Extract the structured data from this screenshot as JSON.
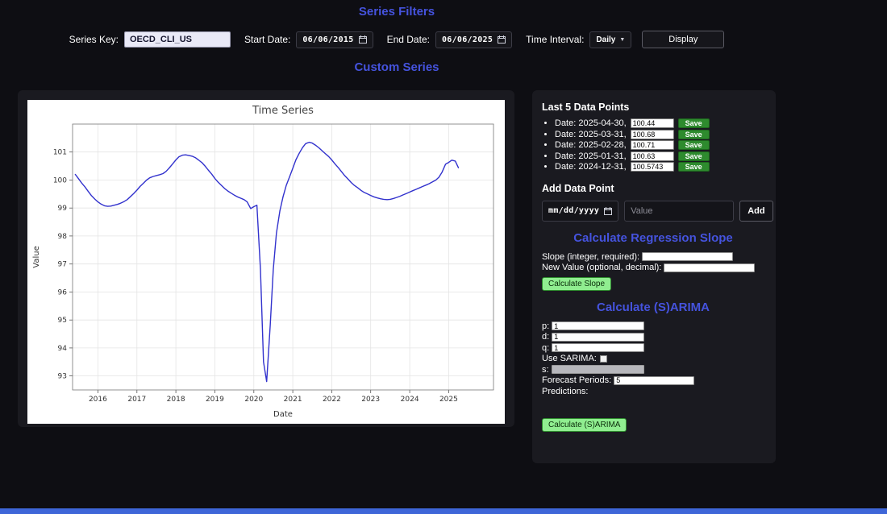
{
  "titles": {
    "series_filters": "Series Filters",
    "custom_series": "Custom Series"
  },
  "filters": {
    "series_key_label": "Series Key:",
    "series_key_value": "OECD_CLI_US",
    "start_date_label": "Start Date:",
    "start_date_value": "06/06/2015",
    "end_date_label": "End Date:",
    "end_date_value": "06/06/2025",
    "time_interval_label": "Time Interval:",
    "time_interval_value": "Daily",
    "display_button": "Display"
  },
  "chart_data": {
    "type": "line",
    "title": "Time Series",
    "xlabel": "Date",
    "ylabel": "Value",
    "xlim": [
      2015.35,
      2026.15
    ],
    "ylim": [
      92.5,
      102.0
    ],
    "xticks": [
      2016,
      2017,
      2018,
      2019,
      2020,
      2021,
      2022,
      2023,
      2024,
      2025
    ],
    "yticks": [
      93,
      94,
      95,
      96,
      97,
      98,
      99,
      100,
      101
    ],
    "grid": true,
    "line_color": "#3232cd",
    "series": [
      {
        "name": "OECD_CLI_US",
        "x": [
          2015.42,
          2015.5,
          2015.58,
          2015.67,
          2015.75,
          2015.83,
          2015.92,
          2016.0,
          2016.08,
          2016.17,
          2016.25,
          2016.33,
          2016.42,
          2016.5,
          2016.58,
          2016.67,
          2016.75,
          2016.83,
          2016.92,
          2017.0,
          2017.08,
          2017.17,
          2017.25,
          2017.33,
          2017.42,
          2017.5,
          2017.58,
          2017.67,
          2017.75,
          2017.83,
          2017.92,
          2018.0,
          2018.08,
          2018.17,
          2018.25,
          2018.33,
          2018.42,
          2018.5,
          2018.58,
          2018.67,
          2018.75,
          2018.83,
          2018.92,
          2019.0,
          2019.08,
          2019.17,
          2019.25,
          2019.33,
          2019.42,
          2019.5,
          2019.58,
          2019.67,
          2019.75,
          2019.83,
          2019.92,
          2020.0,
          2020.08,
          2020.17,
          2020.25,
          2020.33,
          2020.42,
          2020.5,
          2020.58,
          2020.67,
          2020.75,
          2020.83,
          2020.92,
          2021.0,
          2021.08,
          2021.17,
          2021.25,
          2021.33,
          2021.42,
          2021.5,
          2021.58,
          2021.67,
          2021.75,
          2021.83,
          2021.92,
          2022.0,
          2022.08,
          2022.17,
          2022.25,
          2022.33,
          2022.42,
          2022.5,
          2022.58,
          2022.67,
          2022.75,
          2022.83,
          2022.92,
          2023.0,
          2023.08,
          2023.17,
          2023.25,
          2023.33,
          2023.42,
          2023.5,
          2023.58,
          2023.67,
          2023.75,
          2023.83,
          2023.92,
          2024.0,
          2024.08,
          2024.17,
          2024.25,
          2024.33,
          2024.42,
          2024.5,
          2024.58,
          2024.67,
          2024.75,
          2024.83,
          2024.92,
          2025.0,
          2025.08,
          2025.17,
          2025.25
        ],
        "y": [
          100.2,
          100.05,
          99.9,
          99.75,
          99.6,
          99.45,
          99.32,
          99.22,
          99.14,
          99.08,
          99.06,
          99.07,
          99.1,
          99.13,
          99.17,
          99.23,
          99.3,
          99.4,
          99.52,
          99.64,
          99.77,
          99.89,
          100.0,
          100.08,
          100.13,
          100.16,
          100.19,
          100.23,
          100.31,
          100.43,
          100.58,
          100.72,
          100.83,
          100.89,
          100.9,
          100.88,
          100.85,
          100.8,
          100.72,
          100.62,
          100.5,
          100.36,
          100.21,
          100.06,
          99.93,
          99.81,
          99.7,
          99.61,
          99.53,
          99.46,
          99.4,
          99.35,
          99.3,
          99.22,
          98.98,
          99.05,
          99.1,
          96.8,
          93.5,
          92.8,
          94.8,
          96.8,
          98.1,
          98.9,
          99.4,
          99.8,
          100.12,
          100.42,
          100.72,
          100.97,
          101.16,
          101.3,
          101.35,
          101.32,
          101.25,
          101.15,
          101.05,
          100.95,
          100.84,
          100.72,
          100.58,
          100.44,
          100.3,
          100.16,
          100.03,
          99.91,
          99.81,
          99.72,
          99.63,
          99.56,
          99.5,
          99.45,
          99.4,
          99.36,
          99.33,
          99.31,
          99.3,
          99.31,
          99.34,
          99.38,
          99.42,
          99.47,
          99.52,
          99.57,
          99.62,
          99.67,
          99.72,
          99.77,
          99.82,
          99.87,
          99.93,
          100.0,
          100.1,
          100.28,
          100.57,
          100.63,
          100.71,
          100.68,
          100.44
        ]
      }
    ]
  },
  "panel": {
    "last5": {
      "title": "Last 5 Data Points",
      "save_label": "Save",
      "items": [
        {
          "label": "Date: 2025-04-30,",
          "value": "100.44"
        },
        {
          "label": "Date: 2025-03-31,",
          "value": "100.68"
        },
        {
          "label": "Date: 2025-02-28,",
          "value": "100.71"
        },
        {
          "label": "Date: 2025-01-31,",
          "value": "100.63"
        },
        {
          "label": "Date: 2024-12-31,",
          "value": "100.5743"
        }
      ]
    },
    "add_point": {
      "title": "Add Data Point",
      "date_placeholder": "mm/dd/yyyy",
      "value_placeholder": "Value",
      "add_label": "Add"
    },
    "regression": {
      "title": "Calculate Regression Slope",
      "slope_label": "Slope (integer, required):",
      "slope_value": "",
      "new_value_label": "New Value (optional, decimal):",
      "new_value_value": "",
      "button_label": "Calculate Slope"
    },
    "sarima": {
      "title": "Calculate (S)ARIMA",
      "p_label": "p:",
      "p_value": "1",
      "d_label": "d:",
      "d_value": "1",
      "q_label": "q:",
      "q_value": "1",
      "use_sarima_label": "Use SARIMA:",
      "use_sarima_checked": false,
      "s_label": "s:",
      "s_value": "",
      "forecast_label": "Forecast Periods:",
      "forecast_value": "5",
      "predictions_label": "Predictions:",
      "button_label": "Calculate (S)ARIMA"
    }
  },
  "colors": {
    "accent_blue": "#4553de",
    "save_green": "#2e8b2e",
    "calc_button_green": "#90ee90",
    "line_blue": "#3232cd",
    "bottom_bar_blue": "#3e66d8",
    "card_bg": "#1a1a20",
    "page_bg": "#0e0e13"
  }
}
